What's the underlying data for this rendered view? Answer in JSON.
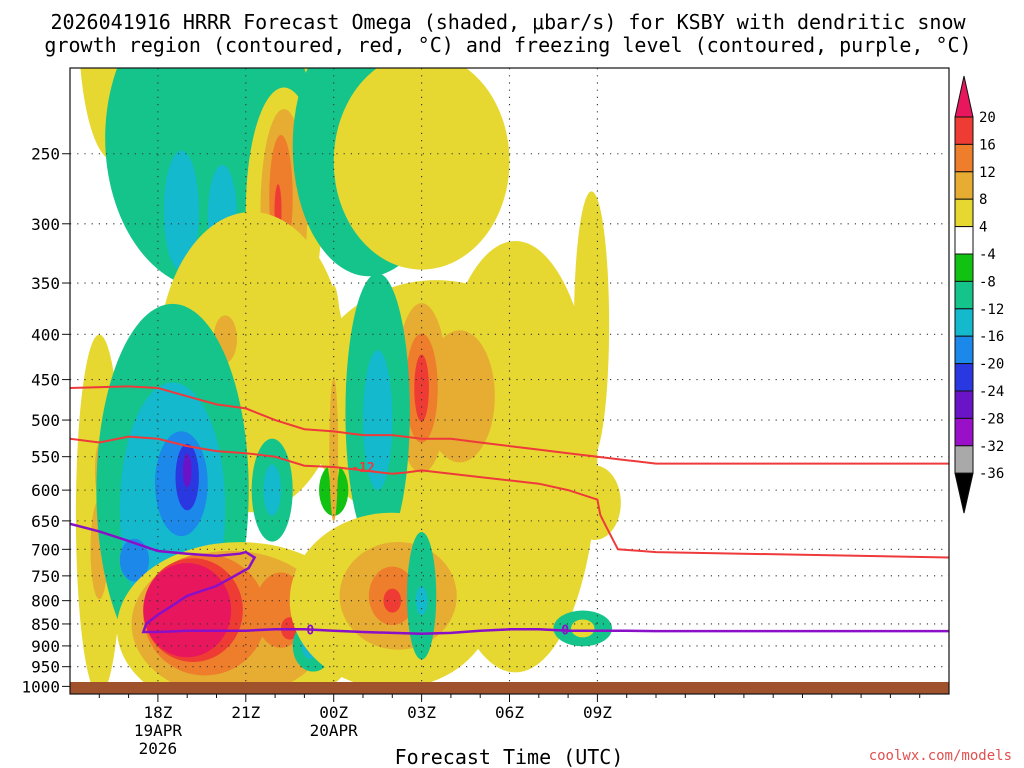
{
  "chart_data": {
    "type": "contour",
    "title_line1": "2026041916 HRRR Forecast Omega (shaded, μbar/s) for KSBY with dendritic snow",
    "title_line2": "growth region (contoured, red, °C) and freezing level (contoured, purple, °C)",
    "xlabel": "Forecast Time (UTC)",
    "credit": "coolwx.com/models",
    "y_ticks": [
      250,
      300,
      350,
      400,
      450,
      500,
      550,
      600,
      650,
      700,
      750,
      800,
      850,
      900,
      950,
      1000
    ],
    "y_range_hpa": [
      200,
      1020
    ],
    "x_range_hours_from_start": [
      0,
      30
    ],
    "x_ticks": [
      {
        "hour": 3,
        "label": "18Z",
        "date": "19APR",
        "year": "2026"
      },
      {
        "hour": 6,
        "label": "21Z",
        "date": "",
        "year": ""
      },
      {
        "hour": 9,
        "label": "00Z",
        "date": "20APR",
        "year": ""
      },
      {
        "hour": 12,
        "label": "03Z",
        "date": "",
        "year": ""
      },
      {
        "hour": 15,
        "label": "06Z",
        "date": "",
        "year": ""
      },
      {
        "hour": 18,
        "label": "09Z",
        "date": "",
        "year": ""
      }
    ],
    "colorbar": {
      "labels": [
        "20",
        "16",
        "12",
        "8",
        "4",
        "-4",
        "-8",
        "-12",
        "-16",
        "-20",
        "-24",
        "-28",
        "-32",
        "-36"
      ],
      "colors": [
        "#e8175d",
        "#ee3b34",
        "#ee7d2c",
        "#e6ad32",
        "#e6d831",
        "#ffffff",
        "#12c212",
        "#15c48b",
        "#14b9cd",
        "#1c88e9",
        "#2a38e2",
        "#6a14c8",
        "#9a10c8",
        "#a9a9a9",
        "#000000"
      ]
    },
    "isotherm_labels": {
      "dgz": "-12",
      "freezing": "0"
    },
    "dgz_upper_boundary": [
      [
        0,
        460
      ],
      [
        2,
        458
      ],
      [
        3,
        460
      ],
      [
        4,
        470
      ],
      [
        5,
        480
      ],
      [
        6,
        485
      ],
      [
        7,
        500
      ],
      [
        8,
        512
      ],
      [
        9,
        515
      ],
      [
        10,
        520
      ],
      [
        11,
        520
      ],
      [
        12,
        525
      ],
      [
        13,
        525
      ],
      [
        14,
        530
      ],
      [
        15,
        535
      ],
      [
        16,
        540
      ],
      [
        17,
        545
      ],
      [
        18,
        550
      ],
      [
        19,
        555
      ],
      [
        20,
        560
      ],
      [
        30,
        560
      ]
    ],
    "dgz_lower_boundary": [
      [
        0,
        525
      ],
      [
        1,
        530
      ],
      [
        2,
        522
      ],
      [
        3,
        525
      ],
      [
        4,
        535
      ],
      [
        5,
        542
      ],
      [
        6,
        545
      ],
      [
        7,
        550
      ],
      [
        8,
        563
      ],
      [
        9,
        565
      ],
      [
        10,
        570
      ],
      [
        11,
        575
      ],
      [
        11.5,
        573
      ],
      [
        12,
        570
      ],
      [
        13,
        575
      ],
      [
        14,
        580
      ],
      [
        15,
        585
      ],
      [
        16,
        590
      ],
      [
        17,
        600
      ],
      [
        18,
        615
      ],
      [
        18.1,
        640
      ],
      [
        18.3,
        660
      ],
      [
        18.7,
        700
      ],
      [
        20,
        705
      ],
      [
        30,
        715
      ]
    ],
    "freezing_level": [
      [
        0,
        655
      ],
      [
        1,
        668
      ],
      [
        2,
        685
      ],
      [
        3,
        703
      ],
      [
        4,
        708
      ],
      [
        5,
        712
      ],
      [
        5.8,
        708
      ],
      [
        6,
        705
      ],
      [
        6.3,
        715
      ],
      [
        6.1,
        735
      ],
      [
        5,
        770
      ],
      [
        4,
        790
      ],
      [
        3.5,
        810
      ],
      [
        3,
        830
      ],
      [
        2.6,
        850
      ],
      [
        2.5,
        868
      ],
      [
        3,
        868
      ],
      [
        4,
        865
      ],
      [
        5,
        865
      ],
      [
        6,
        865
      ],
      [
        7,
        862
      ],
      [
        8,
        862
      ],
      [
        9,
        865
      ],
      [
        10,
        868
      ],
      [
        11,
        870
      ],
      [
        12,
        872
      ],
      [
        13,
        870
      ],
      [
        14,
        865
      ],
      [
        15,
        862
      ],
      [
        16,
        862
      ],
      [
        17,
        865
      ],
      [
        18,
        865
      ],
      [
        19,
        865
      ],
      [
        20,
        866
      ],
      [
        30,
        866
      ]
    ],
    "omega_regions": [
      {
        "value": 6,
        "hour": 1.5,
        "p": 180,
        "dt": 1.2,
        "dp": 60
      },
      {
        "value": 6,
        "hour": 5.5,
        "p": 185,
        "dt": 2.8,
        "dp": 60
      },
      {
        "value": -10,
        "hour": 4.8,
        "p": 240,
        "dt": 3.6,
        "dp": 90
      },
      {
        "value": -14,
        "hour": 3.8,
        "p": 290,
        "dt": 0.6,
        "dp": 45
      },
      {
        "value": -12,
        "hour": 5.2,
        "p": 295,
        "dt": 0.5,
        "dp": 40
      },
      {
        "value": 6,
        "hour": 7.3,
        "p": 290,
        "dt": 1.3,
        "dp": 90
      },
      {
        "value": 10,
        "hour": 7.3,
        "p": 290,
        "dt": 0.8,
        "dp": 75
      },
      {
        "value": 14,
        "hour": 7.2,
        "p": 280,
        "dt": 0.4,
        "dp": 45
      },
      {
        "value": 18,
        "hour": 7.1,
        "p": 290,
        "dt": 0.12,
        "dp": 20
      },
      {
        "value": -10,
        "hour": 10.2,
        "p": 245,
        "dt": 2.6,
        "dp": 80
      },
      {
        "value": -8,
        "hour": 12.0,
        "p": 275,
        "dt": 0.7,
        "dp": 50
      },
      {
        "value": 5,
        "hour": 12.0,
        "p": 255,
        "dt": 3.0,
        "dp": 70
      },
      {
        "value": 5,
        "hour": 13.3,
        "p": 253,
        "dt": 0.35,
        "dp": 15
      },
      {
        "value": 5,
        "hour": 6.2,
        "p": 430,
        "dt": 3.2,
        "dp": 160
      },
      {
        "value": 8,
        "hour": 5.3,
        "p": 405,
        "dt": 0.4,
        "dp": 25
      },
      {
        "value": 5,
        "hour": 12.5,
        "p": 480,
        "dt": 4.5,
        "dp": 150
      },
      {
        "value": 5,
        "hour": 15.2,
        "p": 550,
        "dt": 2.8,
        "dp": 280
      },
      {
        "value": 9,
        "hour": 13.3,
        "p": 470,
        "dt": 1.2,
        "dp": 80
      },
      {
        "value": 10,
        "hour": 12.0,
        "p": 460,
        "dt": 0.9,
        "dp": 100
      },
      {
        "value": 14,
        "hour": 12.0,
        "p": 460,
        "dt": 0.55,
        "dp": 65
      },
      {
        "value": 18,
        "hour": 12.0,
        "p": 460,
        "dt": 0.25,
        "dp": 40
      },
      {
        "value": 5,
        "hour": 17.8,
        "p": 390,
        "dt": 0.6,
        "dp": 130
      },
      {
        "value": 5,
        "hour": 17.9,
        "p": 620,
        "dt": 0.9,
        "dp": 60
      },
      {
        "value": -6,
        "hour": 9.0,
        "p": 600,
        "dt": 0.5,
        "dp": 40
      },
      {
        "value": 5,
        "hour": 9.0,
        "p": 460,
        "dt": 0.3,
        "dp": 120
      },
      {
        "value": 8,
        "hour": 9.0,
        "p": 540,
        "dt": 0.15,
        "dp": 100
      },
      {
        "value": -10,
        "hour": 10.5,
        "p": 490,
        "dt": 1.1,
        "dp": 170
      },
      {
        "value": -14,
        "hour": 10.5,
        "p": 500,
        "dt": 0.5,
        "dp": 90
      },
      {
        "value": 5,
        "hour": 1.0,
        "p": 640,
        "dt": 0.8,
        "dp": 280
      },
      {
        "value": 8,
        "hour": 1.0,
        "p": 700,
        "dt": 0.3,
        "dp": 90
      },
      {
        "value": 8,
        "hour": 1.0,
        "p": 570,
        "dt": 0.15,
        "dp": 40
      },
      {
        "value": -8,
        "hour": 3.5,
        "p": 600,
        "dt": 2.6,
        "dp": 270
      },
      {
        "value": -12,
        "hour": 3.5,
        "p": 630,
        "dt": 1.8,
        "dp": 200
      },
      {
        "value": -16,
        "hour": 3.8,
        "p": 590,
        "dt": 0.9,
        "dp": 80
      },
      {
        "value": -16,
        "hour": 2.2,
        "p": 720,
        "dt": 0.5,
        "dp": 40
      },
      {
        "value": -20,
        "hour": 4.0,
        "p": 580,
        "dt": 0.4,
        "dp": 50
      },
      {
        "value": -24,
        "hour": 4.0,
        "p": 570,
        "dt": 0.15,
        "dp": 25
      },
      {
        "value": -8,
        "hour": 6.9,
        "p": 600,
        "dt": 0.7,
        "dp": 80
      },
      {
        "value": -12,
        "hour": 6.9,
        "p": 600,
        "dt": 0.3,
        "dp": 40
      },
      {
        "value": 5,
        "hour": 5.8,
        "p": 860,
        "dt": 4.2,
        "dp": 190
      },
      {
        "value": 9,
        "hour": 5.5,
        "p": 850,
        "dt": 3.4,
        "dp": 160
      },
      {
        "value": 13,
        "hour": 4.6,
        "p": 830,
        "dt": 2.1,
        "dp": 130
      },
      {
        "value": 17,
        "hour": 4.2,
        "p": 820,
        "dt": 1.7,
        "dp": 110
      },
      {
        "value": 22,
        "hour": 4.0,
        "p": 820,
        "dt": 1.5,
        "dp": 100
      },
      {
        "value": 13,
        "hour": 7.2,
        "p": 820,
        "dt": 0.9,
        "dp": 80
      },
      {
        "value": 18,
        "hour": 7.5,
        "p": 860,
        "dt": 0.3,
        "dp": 25
      },
      {
        "value": -8,
        "hour": 8.3,
        "p": 900,
        "dt": 0.7,
        "dp": 60
      },
      {
        "value": -12,
        "hour": 8.2,
        "p": 900,
        "dt": 0.3,
        "dp": 30
      },
      {
        "value": 5,
        "hour": 11.0,
        "p": 800,
        "dt": 3.5,
        "dp": 180
      },
      {
        "value": 9,
        "hour": 11.2,
        "p": 790,
        "dt": 2.0,
        "dp": 110
      },
      {
        "value": 13,
        "hour": 11.0,
        "p": 790,
        "dt": 0.8,
        "dp": 60
      },
      {
        "value": 17,
        "hour": 11.0,
        "p": 800,
        "dt": 0.3,
        "dp": 25
      },
      {
        "value": -8,
        "hour": 12.0,
        "p": 790,
        "dt": 0.5,
        "dp": 130
      },
      {
        "value": -12,
        "hour": 12.0,
        "p": 800,
        "dt": 0.2,
        "dp": 30
      },
      {
        "value": -8,
        "hour": 17.5,
        "p": 860,
        "dt": 1.0,
        "dp": 40
      },
      {
        "value": 5,
        "hour": 17.5,
        "p": 860,
        "dt": 0.4,
        "dp": 20
      }
    ]
  }
}
